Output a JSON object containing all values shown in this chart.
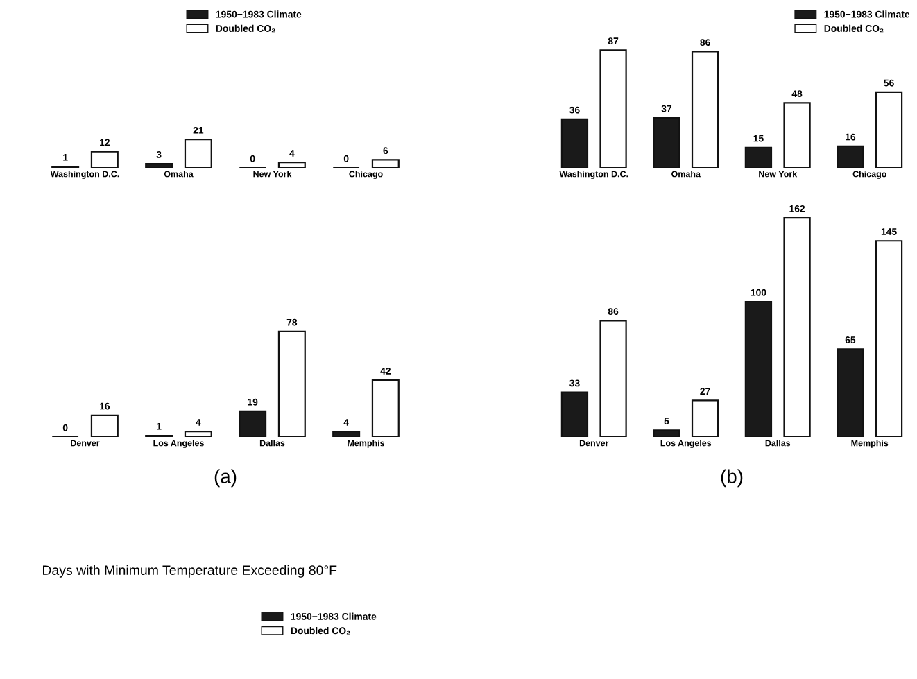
{
  "chart_data": [
    {
      "type": "bar",
      "categories": [
        "Washington D.C.",
        "Omaha",
        "New York",
        "Chicago"
      ],
      "series": [
        {
          "name": "1950−1983 Climate",
          "color": "#1a1a1a",
          "values": [
            1,
            3,
            0,
            0
          ]
        },
        {
          "name": "Doubled CO₂",
          "color": "#ffffff",
          "values": [
            12,
            21,
            4,
            6
          ]
        }
      ],
      "data_labels": true,
      "legend": "top"
    },
    {
      "type": "bar",
      "categories": [
        "Denver",
        "Los Angeles",
        "Dallas",
        "Memphis"
      ],
      "series": [
        {
          "name": "1950−1983 Climate",
          "color": "#1a1a1a",
          "values": [
            0,
            1,
            19,
            4
          ]
        },
        {
          "name": "Doubled CO₂",
          "color": "#ffffff",
          "values": [
            16,
            4,
            78,
            42
          ]
        }
      ],
      "data_labels": true,
      "xlabel": "(a)",
      "legend": "bottom",
      "annotations": [
        "Days with Minimum Temperature Exceeding 80°F"
      ]
    },
    {
      "type": "bar",
      "categories": [
        "Washington D.C.",
        "Omaha",
        "New York",
        "Chicago"
      ],
      "series": [
        {
          "name": "1950−1983 Climate",
          "color": "#1a1a1a",
          "values": [
            36,
            37,
            15,
            16
          ]
        },
        {
          "name": "Doubled CO₂",
          "color": "#ffffff",
          "values": [
            87,
            86,
            48,
            56
          ]
        }
      ],
      "data_labels": true,
      "legend": "top right"
    },
    {
      "type": "bar",
      "categories": [
        "Denver",
        "Los Angeles",
        "Dallas",
        "Memphis"
      ],
      "series": [
        {
          "color": "#1a1a1a",
          "values": [
            33,
            5,
            100,
            65
          ]
        },
        {
          "color": "#ffffff",
          "values": [
            86,
            27,
            162,
            145
          ]
        }
      ],
      "data_labels": true,
      "xlabel": "(b)"
    }
  ]
}
